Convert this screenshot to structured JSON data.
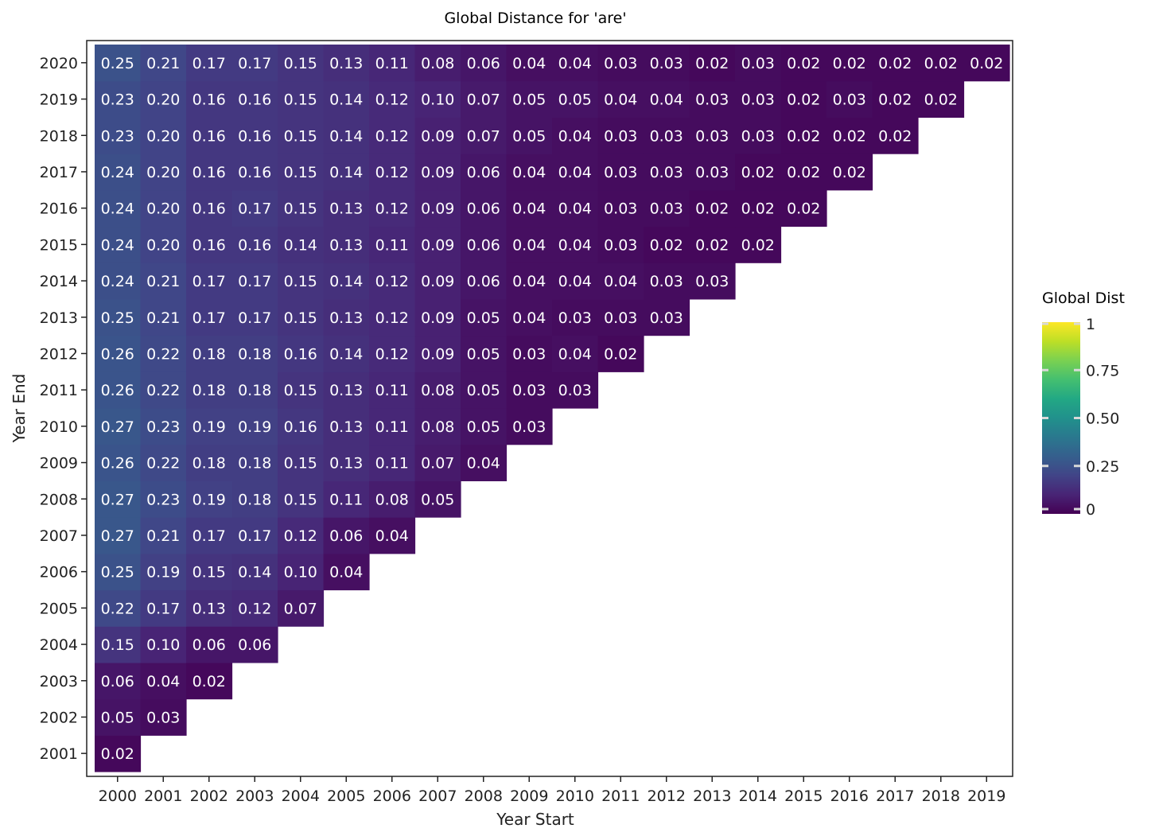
{
  "chart_data": {
    "type": "heatmap",
    "title": "Global Distance for 'are'",
    "xlabel": "Year Start",
    "ylabel": "Year End",
    "x_categories": [
      "2000",
      "2001",
      "2002",
      "2003",
      "2004",
      "2005",
      "2006",
      "2007",
      "2008",
      "2009",
      "2010",
      "2011",
      "2012",
      "2013",
      "2014",
      "2015",
      "2016",
      "2017",
      "2018",
      "2019"
    ],
    "y_categories": [
      "2001",
      "2002",
      "2003",
      "2004",
      "2005",
      "2006",
      "2007",
      "2008",
      "2009",
      "2010",
      "2011",
      "2012",
      "2013",
      "2014",
      "2015",
      "2016",
      "2017",
      "2018",
      "2019",
      "2020"
    ],
    "colorscale": "viridis",
    "color_range": [
      0,
      1
    ],
    "values": {
      "2020": [
        0.25,
        0.21,
        0.17,
        0.17,
        0.15,
        0.13,
        0.11,
        0.08,
        0.06,
        0.04,
        0.04,
        0.03,
        0.03,
        0.02,
        0.03,
        0.02,
        0.02,
        0.02,
        0.02,
        0.02
      ],
      "2019": [
        0.23,
        0.2,
        0.16,
        0.16,
        0.15,
        0.14,
        0.12,
        0.1,
        0.07,
        0.05,
        0.05,
        0.04,
        0.04,
        0.03,
        0.03,
        0.02,
        0.03,
        0.02,
        0.02
      ],
      "2018": [
        0.23,
        0.2,
        0.16,
        0.16,
        0.15,
        0.14,
        0.12,
        0.09,
        0.07,
        0.05,
        0.04,
        0.03,
        0.03,
        0.03,
        0.03,
        0.02,
        0.02,
        0.02
      ],
      "2017": [
        0.24,
        0.2,
        0.16,
        0.16,
        0.15,
        0.14,
        0.12,
        0.09,
        0.06,
        0.04,
        0.04,
        0.03,
        0.03,
        0.03,
        0.02,
        0.02,
        0.02
      ],
      "2016": [
        0.24,
        0.2,
        0.16,
        0.17,
        0.15,
        0.13,
        0.12,
        0.09,
        0.06,
        0.04,
        0.04,
        0.03,
        0.03,
        0.02,
        0.02,
        0.02
      ],
      "2015": [
        0.24,
        0.2,
        0.16,
        0.16,
        0.14,
        0.13,
        0.11,
        0.09,
        0.06,
        0.04,
        0.04,
        0.03,
        0.02,
        0.02,
        0.02
      ],
      "2014": [
        0.24,
        0.21,
        0.17,
        0.17,
        0.15,
        0.14,
        0.12,
        0.09,
        0.06,
        0.04,
        0.04,
        0.04,
        0.03,
        0.03
      ],
      "2013": [
        0.25,
        0.21,
        0.17,
        0.17,
        0.15,
        0.13,
        0.12,
        0.09,
        0.05,
        0.04,
        0.03,
        0.03,
        0.03
      ],
      "2012": [
        0.26,
        0.22,
        0.18,
        0.18,
        0.16,
        0.14,
        0.12,
        0.09,
        0.05,
        0.03,
        0.04,
        0.02
      ],
      "2011": [
        0.26,
        0.22,
        0.18,
        0.18,
        0.15,
        0.13,
        0.11,
        0.08,
        0.05,
        0.03,
        0.03
      ],
      "2010": [
        0.27,
        0.23,
        0.19,
        0.19,
        0.16,
        0.13,
        0.11,
        0.08,
        0.05,
        0.03
      ],
      "2009": [
        0.26,
        0.22,
        0.18,
        0.18,
        0.15,
        0.13,
        0.11,
        0.07,
        0.04
      ],
      "2008": [
        0.27,
        0.23,
        0.19,
        0.18,
        0.15,
        0.11,
        0.08,
        0.05
      ],
      "2007": [
        0.27,
        0.21,
        0.17,
        0.17,
        0.12,
        0.06,
        0.04
      ],
      "2006": [
        0.25,
        0.19,
        0.15,
        0.14,
        0.1,
        0.04
      ],
      "2005": [
        0.22,
        0.17,
        0.13,
        0.12,
        0.07
      ],
      "2004": [
        0.15,
        0.1,
        0.06,
        0.06
      ],
      "2003": [
        0.06,
        0.04,
        0.02
      ],
      "2002": [
        0.05,
        0.03
      ],
      "2001": [
        0.02
      ]
    },
    "legend": {
      "title": "Global Dist",
      "ticks": [
        0,
        0.25,
        0.5,
        0.75,
        1
      ],
      "tick_labels": [
        "0",
        "0.25",
        "0.50",
        "0.75",
        "1"
      ],
      "placement": "right"
    },
    "grid": false
  }
}
